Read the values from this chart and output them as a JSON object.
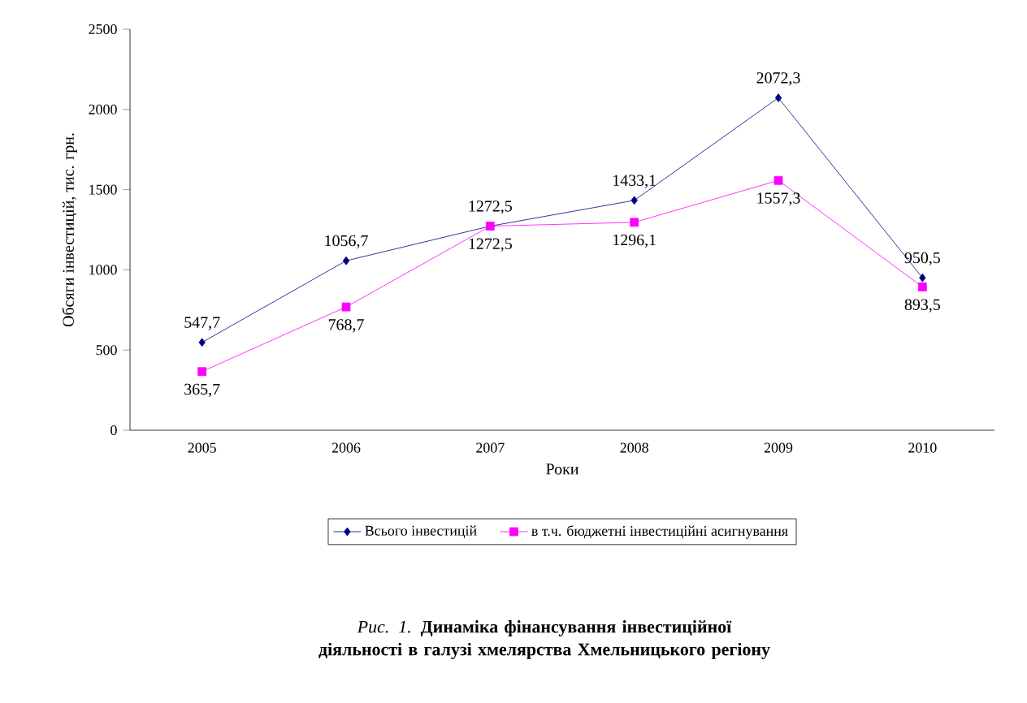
{
  "chart_data": {
    "type": "line",
    "title": "*Рис. 1.* **Динаміка фінансування інвестиційної діяльності в галузі хмелярства Хмельницького регіону**",
    "xlabel": "Роки",
    "ylabel": "Обсяги інвестицій, тис. грн.",
    "categories": [
      "2005",
      "2006",
      "2007",
      "2008",
      "2009",
      "2010"
    ],
    "series": [
      {
        "name": "Всього інвестицій",
        "color": "#000080",
        "marker": "diamond",
        "values": [
          547.7,
          1056.7,
          1272.5,
          1433.1,
          2072.3,
          950.5
        ],
        "value_labels": [
          "547,7",
          "1056,7",
          "1272,5",
          "1433,1",
          "2072,3",
          "950,5"
        ]
      },
      {
        "name": "в т.ч. бюджетні інвестиційні асигнування",
        "color": "#ff00ff",
        "marker": "square",
        "values": [
          365.7,
          768.7,
          1272.5,
          1296.1,
          1557.3,
          893.5
        ],
        "value_labels": [
          "365,7",
          "768,7",
          "1272,5",
          "1296,1",
          "1557,3",
          "893,5"
        ]
      }
    ],
    "ylim": [
      0,
      2500
    ],
    "yticks": [
      0,
      500,
      1000,
      1500,
      2000,
      2500
    ],
    "grid": false,
    "legend": "bottom"
  }
}
